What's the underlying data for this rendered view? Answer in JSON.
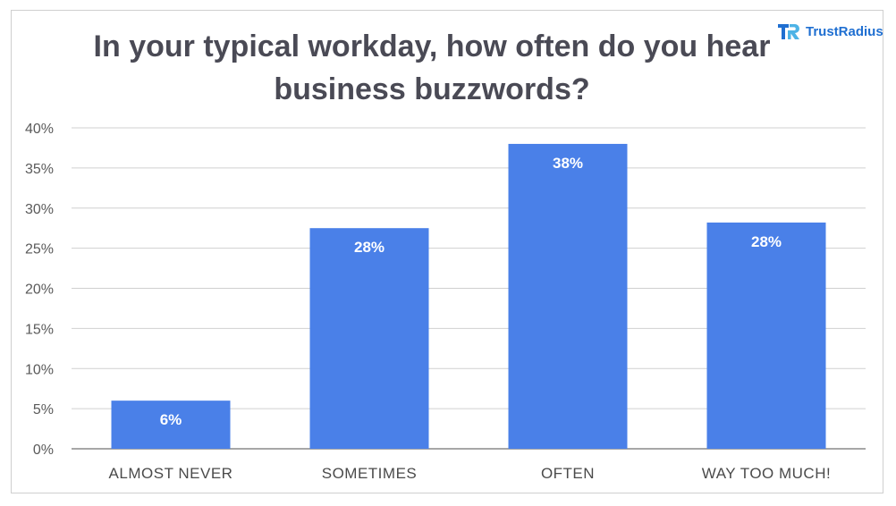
{
  "chart_data": {
    "type": "bar",
    "title": "In your typical workday, how often do you hear business buzzwords?",
    "categories": [
      "ALMOST NEVER",
      "SOMETIMES",
      "OFTEN",
      "WAY TOO MUCH!"
    ],
    "values": [
      6,
      27.5,
      38,
      28.2
    ],
    "data_labels": [
      "6%",
      "28%",
      "38%",
      "28%"
    ],
    "ylim": [
      0,
      40
    ],
    "yticks": [
      0,
      5,
      10,
      15,
      20,
      25,
      30,
      35,
      40
    ],
    "ytick_labels": [
      "0%",
      "5%",
      "10%",
      "15%",
      "20%",
      "25%",
      "30%",
      "35%",
      "40%"
    ],
    "grid": true,
    "legend": "none",
    "bar_color": "#4a80e8"
  },
  "brand": {
    "name": "TrustRadius",
    "color": "#1f6fd1",
    "logo_icon": "trustradius-logo-icon"
  }
}
